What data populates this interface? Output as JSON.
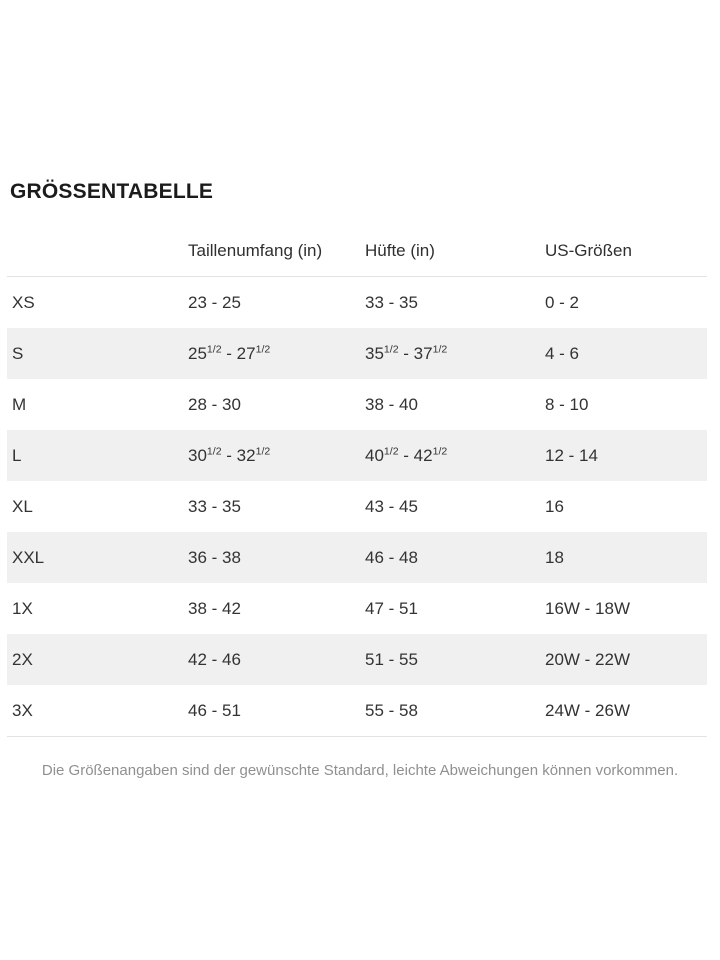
{
  "page": {
    "title": "GRÖSSENTABELLE",
    "footnote": "Die Größenangaben sind der gewünschte Standard, leichte Abweichungen können vorkommen."
  },
  "table": {
    "columns": {
      "size": "",
      "waist": "Taillenumfang (in)",
      "hip": "Hüfte (in)",
      "us": "US-Größen"
    },
    "rows": [
      {
        "size": "XS",
        "waist": "23 - 25",
        "hip": "33 - 35",
        "us": "0 - 2"
      },
      {
        "size": "S",
        "waist": "251/2 - 271/2",
        "hip": "351/2 - 371/2",
        "us": "4 - 6"
      },
      {
        "size": "M",
        "waist": "28 - 30",
        "hip": "38 - 40",
        "us": "8 - 10"
      },
      {
        "size": "L",
        "waist": "301/2 - 321/2",
        "hip": "401/2 - 421/2",
        "us": "12 - 14"
      },
      {
        "size": "XL",
        "waist": "33 - 35",
        "hip": "43 - 45",
        "us": "16"
      },
      {
        "size": "XXL",
        "waist": "36 - 38",
        "hip": "46 - 48",
        "us": "18"
      },
      {
        "size": "1X",
        "waist": "38 - 42",
        "hip": "47 - 51",
        "us": "16W - 18W"
      },
      {
        "size": "2X",
        "waist": "42 - 46",
        "hip": "51 - 55",
        "us": "20W - 22W"
      },
      {
        "size": "3X",
        "waist": "46 - 51",
        "hip": "55 - 58",
        "us": "24W - 26W"
      }
    ]
  },
  "colors": {
    "stripe": "#f0f0f0",
    "divider": "#e3e3e3",
    "text": "#333333",
    "muted_text": "#909090"
  }
}
